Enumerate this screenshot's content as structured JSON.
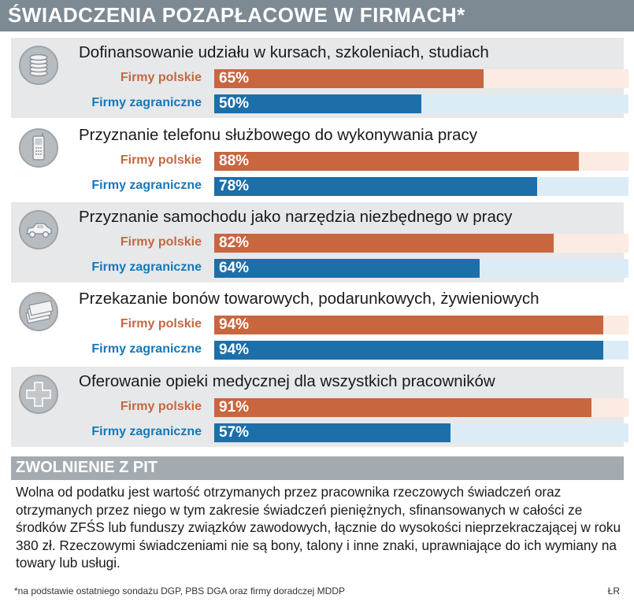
{
  "title": "ŚWIADCZENIA POZAPŁACOWE W FIRMACH*",
  "series_labels": {
    "polish": "Firmy polskie",
    "foreign": "Firmy zagraniczne"
  },
  "colors": {
    "polish": "#c8663f",
    "foreign": "#1c6fa9",
    "header": "#7d8a93"
  },
  "chart_data": {
    "type": "bar",
    "title": "ŚWIADCZENIA POZAPŁACOWE W FIRMACH*",
    "categories": [
      "Dofinansowanie udziału w kursach, szkoleniach, studiach",
      "Przyznanie telefonu służbowego do wykonywania pracy",
      "Przyznanie samochodu jako narzędzia niezbędnego w pracy",
      "Przekazanie bonów towarowych, podarunkowych, żywieniowych",
      "Oferowanie opieki medycznej dla wszystkich pracowników"
    ],
    "icons": [
      "coins-icon",
      "phone-icon",
      "car-icon",
      "vouchers-icon",
      "medical-cross-icon"
    ],
    "series": [
      {
        "name": "Firmy polskie",
        "values": [
          65,
          88,
          82,
          94,
          91
        ],
        "labels": [
          "65%",
          "88%",
          "82%",
          "94%",
          "91%"
        ]
      },
      {
        "name": "Firmy zagraniczne",
        "values": [
          50,
          78,
          64,
          94,
          57
        ],
        "labels": [
          "50%",
          "78%",
          "64%",
          "94%",
          "57%"
        ]
      }
    ],
    "xlim": [
      0,
      100
    ],
    "orientation": "horizontal"
  },
  "pit": {
    "heading": "ZWOLNIENIE Z PIT",
    "text": "Wolna od podatku jest wartość otrzymanych przez pracownika rzeczowych świadczeń oraz otrzymanych przez niego w tym zakresie świadczeń pieniężnych, sfinansowanych w całości ze środków ZFŚS lub funduszy związków zawodowych, łącznie do wysokości nieprzekraczającej w roku 380 zł. Rzeczowymi świadczeniami nie są bony, talony i inne znaki, uprawniające do ich wymiany na towary lub usługi."
  },
  "footnote": "*na podstawie ostatniego sondażu DGP, PBS DGA oraz firmy doradczej MDDP",
  "author": "ŁR"
}
